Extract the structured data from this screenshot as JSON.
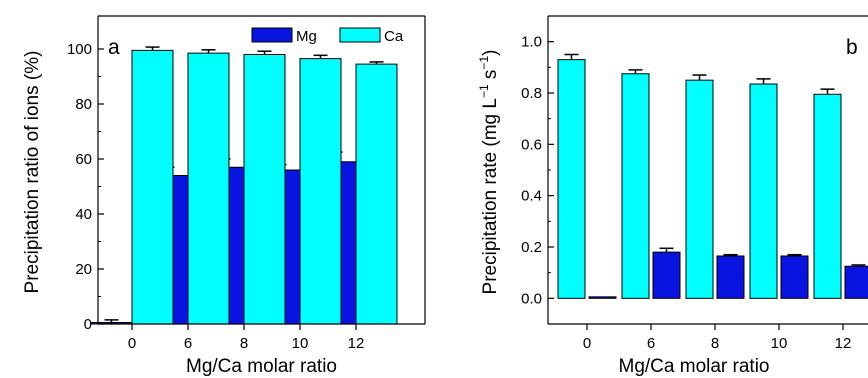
{
  "chart_data": [
    {
      "type": "bar",
      "panel_label": "a",
      "xlabel": "Mg/Ca molar ratio",
      "ylabel": "Precipitation ratio of ions (%)",
      "categories": [
        "0",
        "6",
        "8",
        "10",
        "12"
      ],
      "series": [
        {
          "name": "Mg",
          "color": "#0a14e0",
          "values": [
            0,
            54,
            57,
            56,
            59
          ],
          "errors": [
            1.5,
            3,
            3,
            2,
            3.5
          ]
        },
        {
          "name": "Ca",
          "color": "#00ffff",
          "values": [
            99.5,
            98.5,
            98,
            96.5,
            94.5
          ],
          "errors": [
            1.2,
            1.2,
            1.2,
            1.2,
            0.8
          ]
        }
      ],
      "ylim": [
        0,
        112
      ],
      "yticks": [
        0,
        20,
        40,
        60,
        80,
        100
      ],
      "legend_position": "top-right"
    },
    {
      "type": "bar",
      "panel_label": "b",
      "xlabel": "Mg/Ca molar ratio",
      "ylabel": "Precipitation rate (mg L-1 s-1)",
      "categories": [
        "0",
        "6",
        "8",
        "10",
        "12"
      ],
      "series": [
        {
          "name": "Ca",
          "color": "#00ffff",
          "values": [
            0.93,
            0.875,
            0.85,
            0.835,
            0.795
          ],
          "errors": [
            0.02,
            0.015,
            0.02,
            0.02,
            0.02
          ]
        },
        {
          "name": "Mg",
          "color": "#0a14e0",
          "values": [
            0.0,
            0.18,
            0.165,
            0.165,
            0.125
          ],
          "errors": [
            0.0,
            0.015,
            0.005,
            0.005,
            0.005
          ]
        }
      ],
      "ylim": [
        -0.1,
        1.1
      ],
      "yticks": [
        0.0,
        0.2,
        0.4,
        0.6,
        0.8,
        1.0
      ]
    }
  ]
}
